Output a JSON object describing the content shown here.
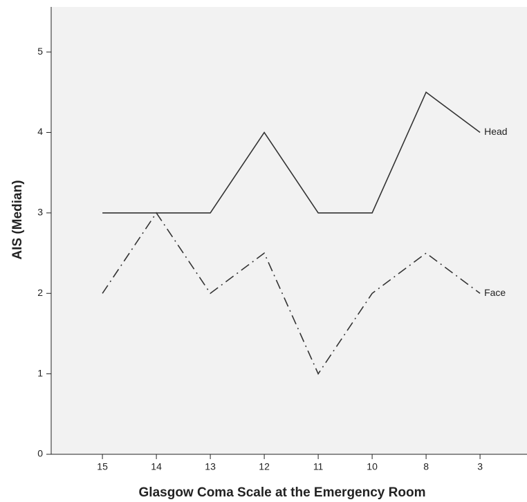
{
  "chart_data": {
    "type": "line",
    "x_label": "Glasgow Coma Scale at the Emergency Room",
    "y_label": "AIS (Median)",
    "categories": [
      "15",
      "14",
      "13",
      "12",
      "11",
      "10",
      "8",
      "3"
    ],
    "series": [
      {
        "name": "Head",
        "color": "#333333",
        "style": "solid",
        "values": [
          3,
          3,
          3,
          4,
          3,
          3,
          4.5,
          4
        ]
      },
      {
        "name": "Face",
        "color": "#333333",
        "style": "dashdot",
        "values": [
          2,
          3,
          2,
          2.5,
          1,
          2,
          2.5,
          2
        ]
      }
    ],
    "ylim": [
      0,
      5.56
    ],
    "yticks": [
      0,
      1,
      2,
      3,
      4,
      5
    ],
    "grid": false
  }
}
